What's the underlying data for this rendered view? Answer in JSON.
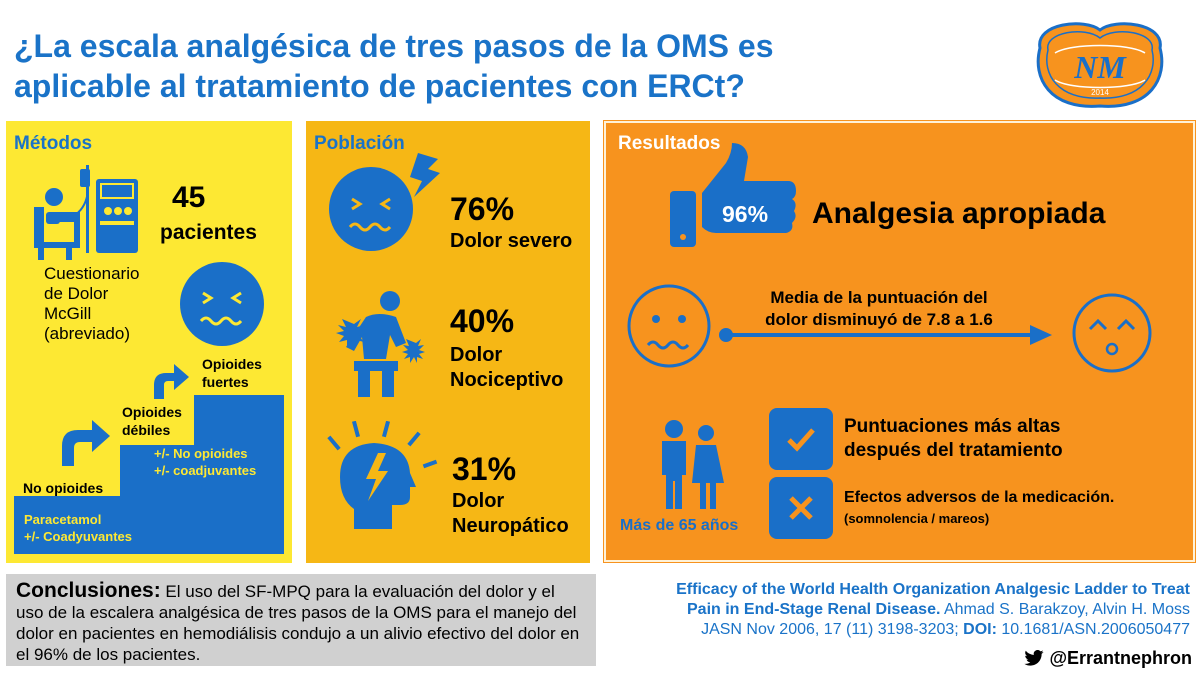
{
  "title": {
    "line1": "¿La escala analgésica de tres pasos de la OMS es",
    "line2": "aplicable al tratamiento de pacientes con ERCt?"
  },
  "logo": {
    "text": "NM",
    "year": "2014"
  },
  "metodos": {
    "title": "Métodos",
    "count": "45",
    "count_label": "pacientes",
    "questionnaire": [
      "Cuestionario",
      "de Dolor",
      "McGill",
      "(abreviado)"
    ],
    "ladder": {
      "step1_label": "No opioides",
      "step2_label": [
        "Opioides",
        "débiles"
      ],
      "step3_label": [
        "Opioides",
        "fuertes"
      ],
      "step2_detail": [
        "+/- No opioides",
        "+/- coadjuvantes"
      ],
      "base_detail": [
        "Paracetamol",
        "+/- Coadyuvantes"
      ]
    }
  },
  "poblacion": {
    "title": "Población",
    "items": [
      {
        "pct": "76%",
        "label": [
          "Dolor severo"
        ]
      },
      {
        "pct": "40%",
        "label": [
          "Dolor",
          "Nociceptivo"
        ]
      },
      {
        "pct": "31%",
        "label": [
          "Dolor",
          "Neuropático"
        ]
      }
    ]
  },
  "resultados": {
    "title": "Resultados",
    "thumb_pct": "96%",
    "headline": "Analgesia apropiada",
    "score_text": [
      "Media de la puntuación del",
      "dolor disminuyó de 7.8 a 1.6"
    ],
    "elderly": "Más de 65 años",
    "check_text": [
      "Puntuaciones más altas",
      "después del tratamiento"
    ],
    "cross_text": "Efectos adversos de la medicación.",
    "cross_sub": "(somnolencia / mareos)"
  },
  "conclusion": {
    "head": "Conclusiones:",
    "body": " El uso del SF-MPQ para la evaluación del dolor y el uso de la escalera analgésica de tres pasos de la OMS para el manejo del dolor en pacientes en hemodiálisis condujo a un alivio efectivo del dolor en el 96% de los pacientes."
  },
  "reference": {
    "title_line1": "Efficacy of the World Health Organization Analgesic Ladder to Treat",
    "title_line2": "Pain in End-Stage Renal Disease.",
    "authors": " Ahmad S. Barakzoy, Alvin H. Moss",
    "journal": "JASN Nov 2006, 17 (11) 3198-3203; ",
    "doi_label": "DOI:",
    "doi": " 10.1681/ASN.2006050477"
  },
  "handle": "@Errantnephron",
  "colors": {
    "accent_blue": "#1a73c8",
    "metodos_bg": "#fde833",
    "poblacion_bg": "#f6b715",
    "resultados_bg": "#f7931e",
    "conclusion_bg": "#d0d0d0"
  }
}
